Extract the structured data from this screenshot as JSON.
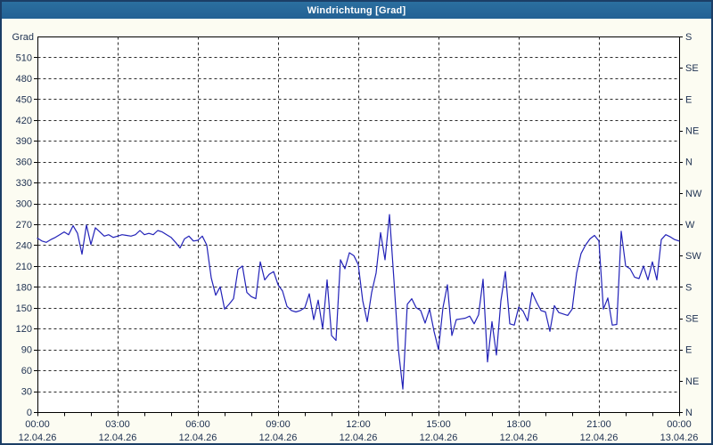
{
  "window": {
    "title": "Windrichtung [Grad]"
  },
  "colors": {
    "title_bar_bg": "#26699c",
    "title_text": "#ffffff",
    "page_bg": "#fcfcf2",
    "outer_border": "#1b3e66",
    "plot_bg": "#ffffff",
    "grid": "#2a2a2a",
    "axis_text": "#1d3050",
    "line": "#2222b8"
  },
  "chart_data": {
    "type": "line",
    "title": "Windrichtung [Grad]",
    "grid": "dashed",
    "legend_position": "none",
    "y_left": {
      "label": "Grad",
      "min": 0,
      "max": 540,
      "tick_step": 30
    },
    "y_right": {
      "tick_step": 45,
      "labels": [
        "N",
        "NE",
        "E",
        "SE",
        "S",
        "SW",
        "W",
        "NW",
        "N",
        "NE",
        "E",
        "SE",
        "S"
      ]
    },
    "x_axis": {
      "minor_tick_minutes": 60,
      "major_tick_minutes": 180,
      "ticks": [
        {
          "time": "00:00",
          "date": "12.04.26"
        },
        {
          "time": "03:00",
          "date": "12.04.26"
        },
        {
          "time": "06:00",
          "date": "12.04.26"
        },
        {
          "time": "09:00",
          "date": "12.04.26"
        },
        {
          "time": "12:00",
          "date": "12.04.26"
        },
        {
          "time": "15:00",
          "date": "12.04.26"
        },
        {
          "time": "18:00",
          "date": "12.04.26"
        },
        {
          "time": "21:00",
          "date": "12.04.26"
        },
        {
          "time": "00:00",
          "date": "13.04.26"
        }
      ]
    },
    "series": [
      {
        "name": "Windrichtung",
        "unit": "Grad",
        "x_start_minutes": 0,
        "x_step_minutes": 10,
        "values": [
          250,
          246,
          244,
          248,
          251,
          255,
          259,
          255,
          268,
          257,
          227,
          269,
          241,
          265,
          259,
          253,
          255,
          251,
          253,
          255,
          254,
          253,
          255,
          261,
          255,
          257,
          255,
          261,
          259,
          255,
          251,
          244,
          236,
          249,
          253,
          246,
          247,
          253,
          240,
          193,
          168,
          180,
          148,
          155,
          163,
          205,
          210,
          172,
          166,
          163,
          216,
          190,
          198,
          202,
          183,
          174,
          152,
          146,
          144,
          146,
          150,
          170,
          133,
          161,
          120,
          190,
          110,
          103,
          219,
          206,
          229,
          225,
          212,
          160,
          130,
          172,
          200,
          258,
          219,
          284,
          190,
          90,
          33,
          155,
          163,
          150,
          146,
          128,
          148,
          116,
          90,
          150,
          183,
          110,
          133,
          134,
          135,
          138,
          127,
          140,
          191,
          72,
          130,
          82,
          160,
          202,
          127,
          125,
          151,
          145,
          131,
          172,
          158,
          146,
          144,
          116,
          153,
          143,
          141,
          139,
          148,
          200,
          228,
          240,
          249,
          254,
          246,
          148,
          164,
          125,
          126,
          260,
          210,
          206,
          194,
          192,
          210,
          190,
          216,
          190,
          248,
          255,
          252,
          248,
          246
        ]
      }
    ]
  }
}
